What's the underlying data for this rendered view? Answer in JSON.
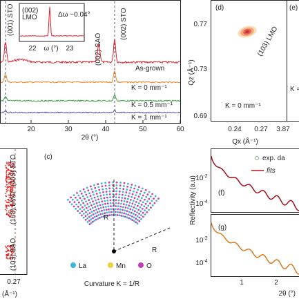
{
  "panel_a": {
    "peak_labels": [
      "(001) STO",
      "(002) SAO",
      "(002) STO"
    ],
    "inset": {
      "label": "(002)\nLMO",
      "annotation": "Δω ~0.04°",
      "xticks": [
        "22",
        "23"
      ],
      "xlabel": "ω (°)"
    },
    "curve_labels": [
      "As-grown",
      "K = 0 mm⁻¹",
      "K = 0.5 mm⁻¹",
      "K = 1 mm⁻¹"
    ],
    "xticks": [
      "20",
      "30",
      "40",
      "50",
      "60"
    ],
    "xlabel": "2θ (°)"
  },
  "panel_b": {
    "peak_labels": [
      "(103) STO",
      "(103) LMO",
      "(103) SAO"
    ],
    "xticks": [
      "0.27"
    ],
    "xlabel": "(Å⁻¹)"
  },
  "panel_c": {
    "label": "(c)",
    "radius_labels": [
      "R",
      "R"
    ],
    "legend": [
      "La",
      "Mn",
      "O"
    ],
    "caption": "Curvature K = 1/R"
  },
  "panel_d": {
    "label": "(d)",
    "peak_label": "(103) LMO",
    "annotation": "K = 0 mm⁻¹",
    "yticks": [
      "0.77",
      "0.73",
      "0.69"
    ],
    "ylabel": "Qz (Å⁻¹)",
    "xticks": [
      "0.24",
      "0.27",
      "3.87"
    ],
    "xlabel": "Qx (Å⁻¹)"
  },
  "panel_e": {
    "label": "(e)",
    "annotation": "K ="
  },
  "panel_f": {
    "label": "(f)",
    "legend": [
      "exp. da",
      "fits"
    ],
    "yticks": [
      {
        "base": "10",
        "exp": "-2"
      },
      {
        "base": "10",
        "exp": "-4"
      }
    ],
    "ylabel": "Reflectivity (a.u)"
  },
  "panel_g": {
    "label": "(g)",
    "yticks": [
      {
        "base": "10",
        "exp": "-2"
      },
      {
        "base": "10",
        "exp": "-4"
      }
    ],
    "xticks": [
      "1",
      "2"
    ],
    "xlabel": "2θ (°)"
  }
}
